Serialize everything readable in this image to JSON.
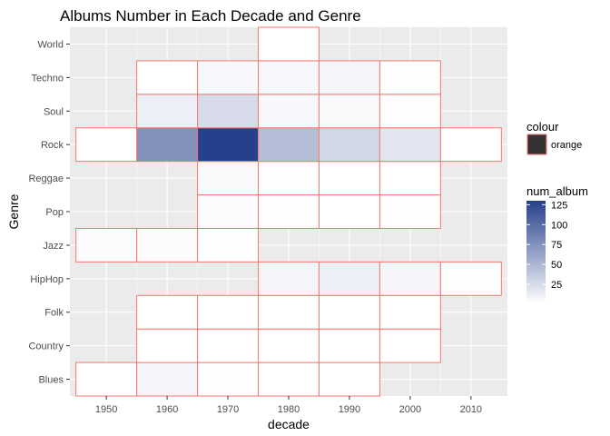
{
  "chart_data": {
    "type": "heatmap",
    "title": "Albums Number in Each Decade and Genre",
    "xlabel": "decade",
    "ylabel": "Genre",
    "x_ticks": [
      "1950",
      "1960",
      "1970",
      "1980",
      "1990",
      "2000",
      "2010"
    ],
    "x_tick_values": [
      1950,
      1960,
      1970,
      1980,
      1990,
      2000,
      2010
    ],
    "y_categories": [
      "Blues",
      "Country",
      "Folk",
      "HipHop",
      "Jazz",
      "Pop",
      "Reggae",
      "Rock",
      "Soul",
      "Techno",
      "World"
    ],
    "xlim": [
      1944,
      2016
    ],
    "tile_width": 10,
    "fill_scale": {
      "low": "#ffffff",
      "high": "#26408b",
      "min": 1,
      "max": 130
    },
    "tile_border_color": "#f8766d",
    "panel_background": "#ebebeb",
    "grid": true,
    "legend_position": "right",
    "cells": [
      {
        "x": 1950,
        "y": "Blues",
        "v": 1
      },
      {
        "x": 1960,
        "y": "Blues",
        "v": 8
      },
      {
        "x": 1970,
        "y": "Blues",
        "v": 2
      },
      {
        "x": 1980,
        "y": "Blues",
        "v": 1
      },
      {
        "x": 1990,
        "y": "Blues",
        "v": 1
      },
      {
        "x": 1960,
        "y": "Country",
        "v": 1
      },
      {
        "x": 1970,
        "y": "Country",
        "v": 1
      },
      {
        "x": 1980,
        "y": "Country",
        "v": 1
      },
      {
        "x": 1990,
        "y": "Country",
        "v": 1
      },
      {
        "x": 2000,
        "y": "Country",
        "v": 1
      },
      {
        "x": 1960,
        "y": "Folk",
        "v": 1
      },
      {
        "x": 1970,
        "y": "Folk",
        "v": 1
      },
      {
        "x": 1980,
        "y": "Folk",
        "v": 1
      },
      {
        "x": 1990,
        "y": "Folk",
        "v": 1
      },
      {
        "x": 2000,
        "y": "Folk",
        "v": 1
      },
      {
        "x": 1980,
        "y": "HipHop",
        "v": 8
      },
      {
        "x": 1990,
        "y": "HipHop",
        "v": 12
      },
      {
        "x": 2000,
        "y": "HipHop",
        "v": 8
      },
      {
        "x": 2010,
        "y": "HipHop",
        "v": 2
      },
      {
        "x": 1950,
        "y": "Jazz",
        "v": 4
      },
      {
        "x": 1960,
        "y": "Jazz",
        "v": 3
      },
      {
        "x": 1970,
        "y": "Jazz",
        "v": 2
      },
      {
        "x": 1970,
        "y": "Pop",
        "v": 4
      },
      {
        "x": 1980,
        "y": "Pop",
        "v": 2
      },
      {
        "x": 1990,
        "y": "Pop",
        "v": 1
      },
      {
        "x": 2000,
        "y": "Pop",
        "v": 2
      },
      {
        "x": 1970,
        "y": "Reggae",
        "v": 5
      },
      {
        "x": 1980,
        "y": "Reggae",
        "v": 2
      },
      {
        "x": 1990,
        "y": "Reggae",
        "v": 1
      },
      {
        "x": 2000,
        "y": "Reggae",
        "v": 1
      },
      {
        "x": 1950,
        "y": "Rock",
        "v": 1
      },
      {
        "x": 1960,
        "y": "Rock",
        "v": 75
      },
      {
        "x": 1970,
        "y": "Rock",
        "v": 130
      },
      {
        "x": 1980,
        "y": "Rock",
        "v": 45
      },
      {
        "x": 1990,
        "y": "Rock",
        "v": 28
      },
      {
        "x": 2000,
        "y": "Rock",
        "v": 18
      },
      {
        "x": 2010,
        "y": "Rock",
        "v": 1
      },
      {
        "x": 1960,
        "y": "Soul",
        "v": 12
      },
      {
        "x": 1970,
        "y": "Soul",
        "v": 25
      },
      {
        "x": 1980,
        "y": "Soul",
        "v": 6
      },
      {
        "x": 1990,
        "y": "Soul",
        "v": 5
      },
      {
        "x": 2000,
        "y": "Soul",
        "v": 2
      },
      {
        "x": 1960,
        "y": "Techno",
        "v": 1
      },
      {
        "x": 1970,
        "y": "Techno",
        "v": 6
      },
      {
        "x": 1980,
        "y": "Techno",
        "v": 6
      },
      {
        "x": 1990,
        "y": "Techno",
        "v": 8
      },
      {
        "x": 2000,
        "y": "Techno",
        "v": 2
      },
      {
        "x": 1980,
        "y": "World",
        "v": 1
      }
    ]
  },
  "legend": {
    "colour_title": "colour",
    "colour_item_label": "orange",
    "colour_key_fill": "#333333",
    "fill_title": "num_album",
    "fill_breaks": [
      "25",
      "50",
      "75",
      "100",
      "125"
    ],
    "fill_break_values": [
      25,
      50,
      75,
      100,
      125
    ]
  }
}
